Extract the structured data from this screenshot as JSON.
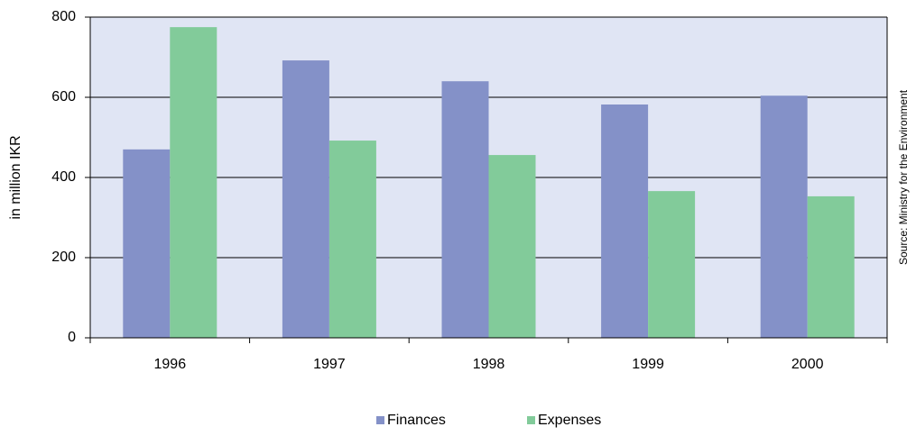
{
  "chart_data": {
    "type": "bar",
    "y_label": "in million IKR",
    "source": "Source: Ministry for the Environment",
    "categories": [
      "1996",
      "1997",
      "1998",
      "1999",
      "2000"
    ],
    "series": [
      {
        "name": "Finances",
        "color": "#8491c8",
        "values": [
          470,
          692,
          640,
          582,
          604
        ]
      },
      {
        "name": "Expenses",
        "color": "#82cb9a",
        "values": [
          775,
          492,
          456,
          366,
          353
        ]
      }
    ],
    "ylim": [
      0,
      800
    ],
    "yticks": [
      0,
      200,
      400,
      600,
      800
    ],
    "grid": true,
    "legend": "bottom"
  }
}
